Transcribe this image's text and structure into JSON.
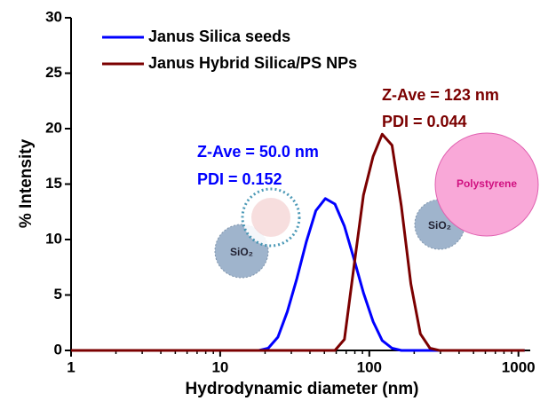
{
  "chart_data": {
    "type": "line",
    "xscale": "log",
    "xlabel": "Hydrodynamic diameter (nm)",
    "ylabel": "% Intensity",
    "xlim": [
      1,
      1200
    ],
    "xticks": [
      1,
      10,
      100,
      1000
    ],
    "ylim": [
      0,
      30
    ],
    "yticks": [
      0,
      5,
      10,
      15,
      20,
      25,
      30
    ],
    "legend": "upper left",
    "series": [
      {
        "name": "Janus Silica seeds",
        "color": "#0000ff",
        "x": [
          1,
          18.2,
          21.0,
          24.4,
          28.2,
          32.7,
          37.8,
          43.8,
          50.7,
          58.8,
          68.1,
          78.8,
          91.3,
          106,
          122,
          142,
          164,
          190,
          220,
          1100
        ],
        "values": [
          0,
          0,
          0.2,
          1.2,
          3.5,
          6.5,
          9.8,
          12.6,
          13.7,
          13.2,
          11.2,
          8.3,
          5.2,
          2.6,
          0.9,
          0.2,
          0,
          0,
          0,
          0
        ]
      },
      {
        "name": "Janus Hybrid Silica/PS NPs",
        "color": "#7b0000",
        "x": [
          1,
          50.7,
          58.8,
          68.1,
          78.8,
          91.3,
          106,
          122,
          142,
          164,
          190,
          220,
          255,
          295,
          1100
        ],
        "values": [
          0,
          0,
          0,
          1.0,
          7.5,
          14.0,
          17.5,
          19.5,
          18.5,
          13.0,
          6.0,
          1.5,
          0.2,
          0,
          0
        ]
      }
    ],
    "annotations": [
      {
        "text": "Z-Ave = 50.0 nm",
        "color": "#0000ff"
      },
      {
        "text": "PDI = 0.152",
        "color": "#0000ff"
      },
      {
        "text": "Z-Ave = 123 nm",
        "color": "#7b0000"
      },
      {
        "text": "PDI = 0.044",
        "color": "#7b0000"
      }
    ],
    "illustration_labels": [
      "SiO₂",
      "SiO₂",
      "Polystyrene"
    ]
  }
}
